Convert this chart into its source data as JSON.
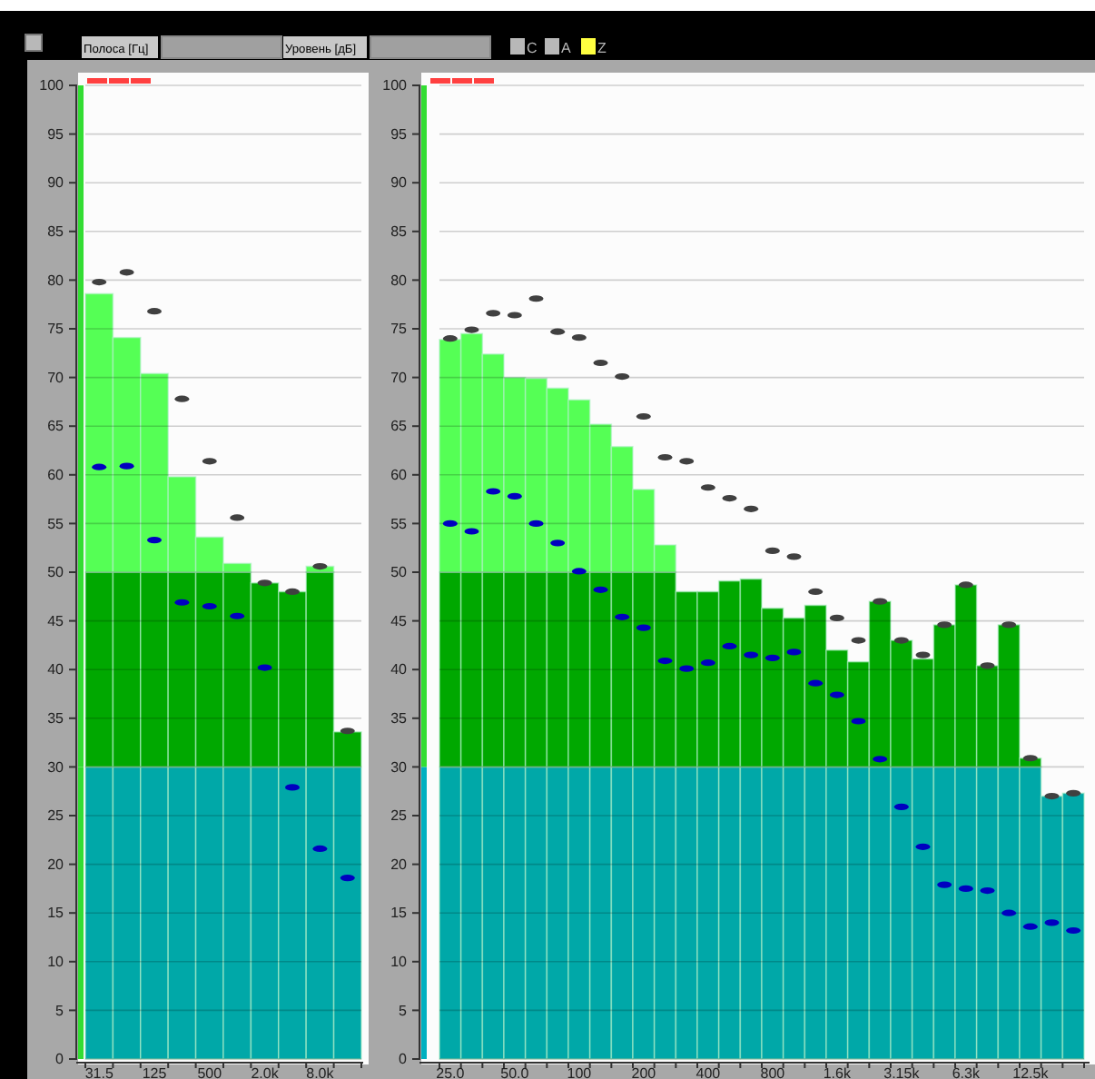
{
  "chart_data": [
    {
      "type": "bar",
      "stacked": true,
      "annotations": [
        "Полоса [Гц]",
        "Уровень [дБ]",
        "C",
        "A",
        "Z"
      ],
      "categories": [
        "31.5",
        null,
        "125",
        null,
        "500",
        null,
        "2.0k",
        null,
        "8.0k",
        null
      ],
      "ylim": [
        0,
        100
      ],
      "yticks": [
        0,
        5,
        10,
        15,
        20,
        25,
        30,
        35,
        40,
        45,
        50,
        55,
        60,
        65,
        70,
        75,
        80,
        85,
        90,
        95,
        100
      ],
      "grid": "y",
      "legend": false,
      "series": [
        {
          "type": "bar",
          "color": "#00a8a8",
          "values": [
            30,
            30,
            30,
            30,
            30,
            30,
            30,
            30,
            30,
            30
          ]
        },
        {
          "type": "bar",
          "color": "#00a800",
          "values": [
            20,
            20,
            20,
            20,
            20,
            20,
            18.9,
            18.0,
            20,
            3.6
          ]
        },
        {
          "type": "bar",
          "color": "#55ff55",
          "values": [
            28.6,
            24.1,
            20.4,
            9.8,
            3.6,
            0.9,
            0,
            0,
            0.6,
            0
          ]
        },
        {
          "type": "scatter",
          "color": "#404040",
          "values": [
            79.8,
            80.8,
            76.8,
            67.8,
            61.4,
            55.6,
            48.9,
            48.0,
            50.6,
            33.7
          ]
        },
        {
          "type": "scatter",
          "color": "#0000c0",
          "values": [
            60.8,
            60.9,
            53.3,
            46.9,
            46.5,
            45.5,
            40.2,
            27.9,
            21.6,
            18.6
          ]
        }
      ]
    },
    {
      "type": "bar",
      "stacked": true,
      "categories": [
        "25.0",
        null,
        null,
        "50.0",
        null,
        null,
        "100",
        null,
        null,
        "200",
        null,
        null,
        "400",
        null,
        null,
        "800",
        null,
        null,
        "1.6k",
        null,
        null,
        "3.15k",
        null,
        null,
        "6.3k",
        null,
        null,
        "12.5k",
        null,
        null
      ],
      "ylim": [
        0,
        100
      ],
      "yticks": [
        0,
        5,
        10,
        15,
        20,
        25,
        30,
        35,
        40,
        45,
        50,
        55,
        60,
        65,
        70,
        75,
        80,
        85,
        90,
        95,
        100
      ],
      "grid": "y",
      "legend": false,
      "series": [
        {
          "type": "bar",
          "color": "#00a8a8",
          "values": [
            30,
            30,
            30,
            30,
            30,
            30,
            30,
            30,
            30,
            30,
            30,
            30,
            30,
            30,
            30,
            30,
            30,
            30,
            30,
            30,
            30,
            30,
            30,
            30,
            30,
            30,
            30,
            30,
            27.0,
            27.3
          ]
        },
        {
          "type": "bar",
          "color": "#00a800",
          "values": [
            20,
            20,
            20,
            20,
            20,
            20,
            20,
            20,
            20,
            20,
            20,
            18.0,
            18.0,
            19.1,
            19.3,
            16.3,
            15.3,
            16.6,
            12.0,
            10.8,
            17.0,
            13.0,
            11.1,
            14.6,
            18.7,
            10.4,
            14.6,
            0.9,
            0,
            0
          ]
        },
        {
          "type": "bar",
          "color": "#55ff55",
          "values": [
            23.9,
            24.5,
            22.4,
            20.0,
            19.9,
            18.9,
            17.7,
            15.2,
            12.9,
            8.5,
            2.8,
            0,
            0,
            0,
            0,
            0,
            0,
            0,
            0,
            0,
            0,
            0,
            0,
            0,
            0,
            0,
            0,
            0,
            0,
            0
          ]
        },
        {
          "type": "scatter",
          "color": "#404040",
          "values": [
            74.0,
            74.9,
            76.6,
            76.4,
            78.1,
            74.7,
            74.1,
            71.5,
            70.1,
            66.0,
            61.8,
            61.4,
            58.7,
            57.6,
            56.5,
            52.2,
            51.6,
            48.0,
            45.3,
            43.0,
            47.0,
            43.0,
            41.5,
            44.6,
            48.7,
            40.4,
            44.6,
            30.9,
            27.0,
            27.3
          ]
        },
        {
          "type": "scatter",
          "color": "#0000c0",
          "values": [
            55.0,
            54.2,
            58.3,
            57.8,
            55.0,
            53.0,
            50.1,
            48.2,
            45.4,
            44.3,
            40.9,
            40.1,
            40.7,
            42.4,
            41.5,
            41.2,
            41.8,
            38.6,
            37.4,
            34.7,
            30.8,
            25.9,
            21.8,
            17.9,
            17.5,
            17.3,
            15.0,
            13.6,
            14.0,
            13.2
          ]
        }
      ]
    }
  ]
}
